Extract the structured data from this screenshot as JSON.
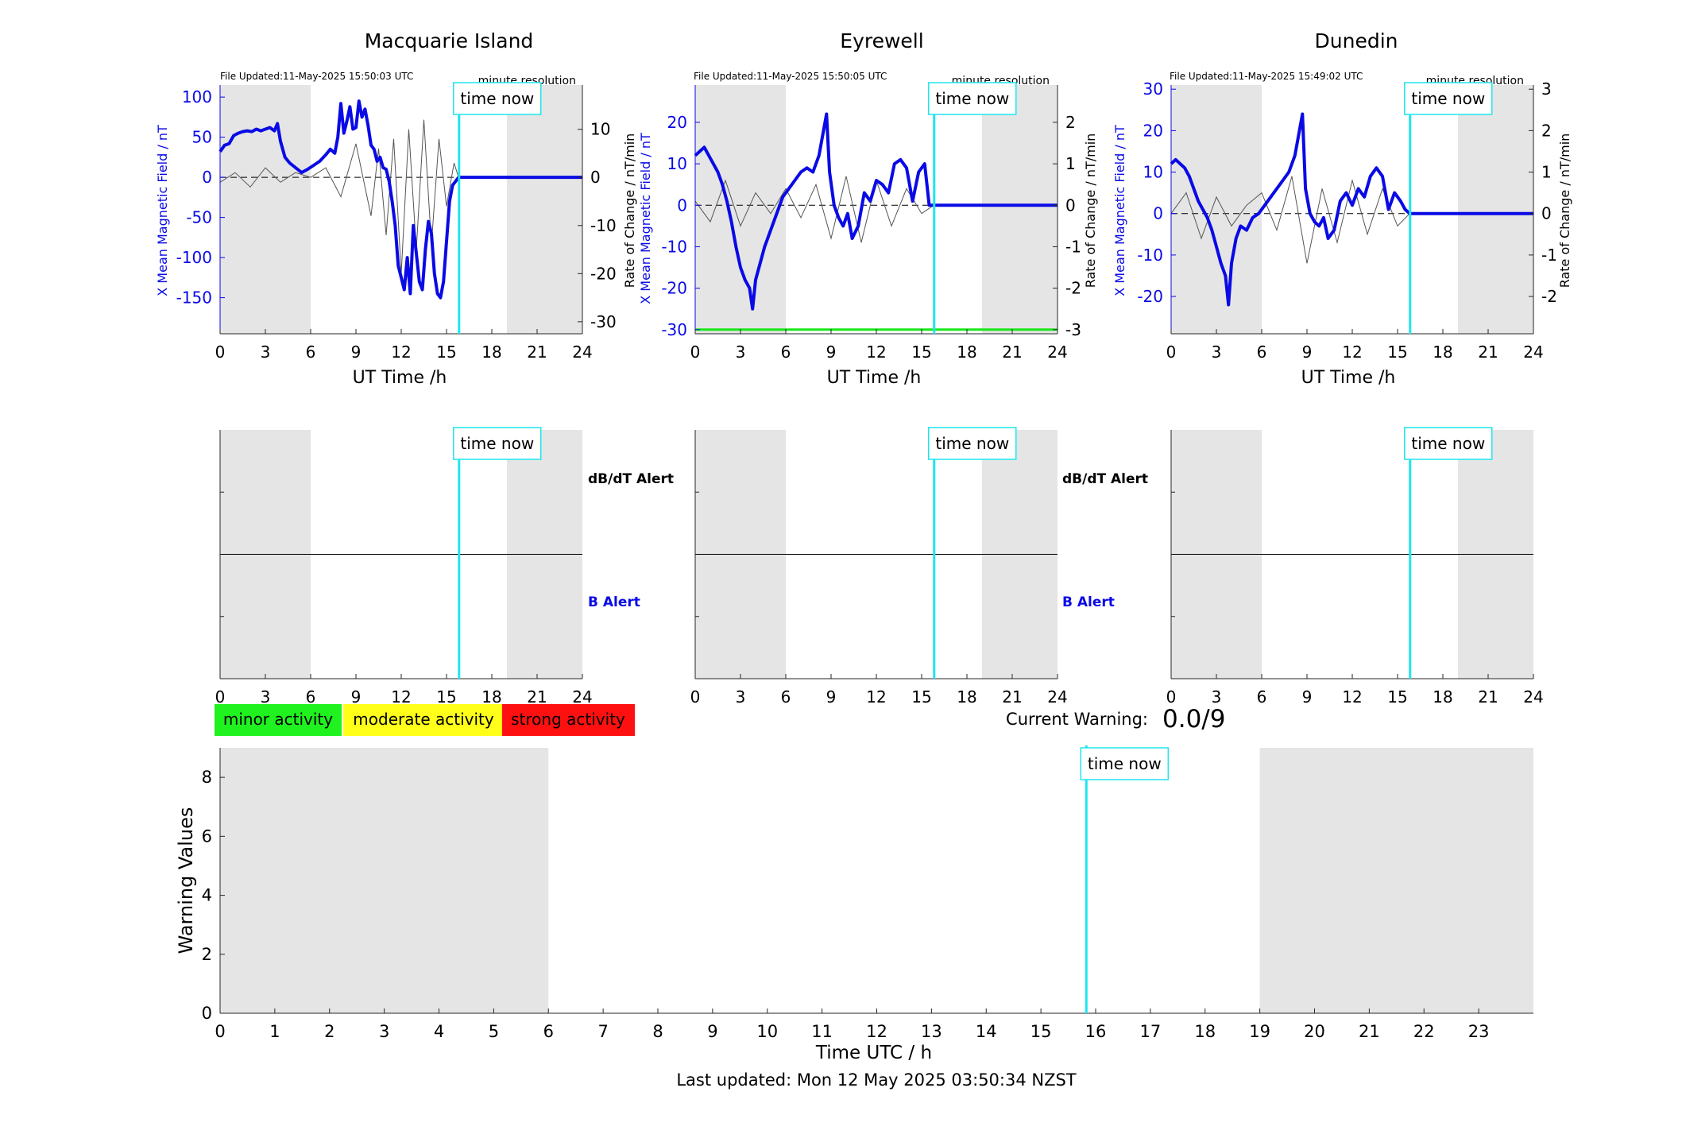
{
  "x_ticks": [
    "0",
    "3",
    "6",
    "9",
    "12",
    "15",
    "18",
    "21",
    "24"
  ],
  "xlabel": "UT Time /h",
  "stations": [
    {
      "name": "Macquarie Island",
      "file_updated": "File Updated:11-May-2025 15:50:03 UTC",
      "resolution": "minute resolution",
      "ylabel_left": "X Mean Magnetic Field / nT",
      "ylabel_right": "Rate of Change / nT/min",
      "left_ticks": [
        "100",
        "50",
        "0",
        "-50",
        "-100",
        "-150"
      ],
      "right_ticks": [
        "10",
        "0",
        "-10",
        "-20",
        "-30"
      ],
      "time_now_label": "time now",
      "dbdt_alert_label": "dB/dT Alert",
      "b_alert_label": "B Alert"
    },
    {
      "name": "Eyrewell",
      "file_updated": "File Updated:11-May-2025 15:50:05 UTC",
      "resolution": "minute resolution",
      "ylabel_left": "X Mean Magnetic Field / nT",
      "ylabel_right": "Rate of Change / nT/min",
      "left_ticks": [
        "20",
        "10",
        "0",
        "-10",
        "-20",
        "-30"
      ],
      "right_ticks": [
        "2",
        "1",
        "0",
        "-1",
        "-2",
        "-3"
      ],
      "time_now_label": "time now",
      "dbdt_alert_label": "dB/dT Alert",
      "b_alert_label": "B Alert"
    },
    {
      "name": "Dunedin",
      "file_updated": "File Updated:11-May-2025 15:49:02 UTC",
      "resolution": "minute resolution",
      "ylabel_left": "X Mean Magnetic Field / nT",
      "ylabel_right": "Rate of Change / nT/min",
      "left_ticks": [
        "30",
        "20",
        "10",
        "0",
        "-10",
        "-20"
      ],
      "right_ticks": [
        "3",
        "2",
        "1",
        "0",
        "-1",
        "-2"
      ],
      "time_now_label": "time now"
    }
  ],
  "legend": {
    "minor": "minor activity",
    "moderate": "moderate activity",
    "strong": "strong activity"
  },
  "current_warning": {
    "label": "Current Warning:",
    "value": "0.0/9"
  },
  "warning_panel": {
    "ylabel": "Warning Values",
    "xlabel": "Time UTC / h",
    "y_ticks": [
      "0",
      "2",
      "4",
      "6",
      "8"
    ],
    "x_ticks": [
      "0",
      "1",
      "2",
      "3",
      "4",
      "5",
      "6",
      "7",
      "8",
      "9",
      "10",
      "11",
      "12",
      "13",
      "14",
      "15",
      "16",
      "17",
      "18",
      "19",
      "20",
      "21",
      "22",
      "23"
    ],
    "time_now_label": "time now"
  },
  "last_updated": "Last updated: Mon 12 May 2025 03:50:34 NZST",
  "colors": {
    "field": "#0a0ae6",
    "rate": "#555555",
    "time_now": "#1ee6ee",
    "shade": "#e5e5e5",
    "minor": "#1ff21f",
    "moderate": "#ffff1a",
    "strong": "#ff1010",
    "ref_green": "#19e619"
  },
  "chart_data": [
    {
      "type": "line",
      "title": "Macquarie Island",
      "xlabel": "UT Time /h",
      "ylabel": "X Mean Magnetic Field / nT",
      "ylabel_right": "Rate of Change / nT/min",
      "xlim": [
        0,
        24
      ],
      "ylim": [
        -195,
        115
      ],
      "ylim_right": [
        -32.5,
        19.2
      ],
      "time_now": 15.83,
      "night_shading": [
        [
          0,
          6
        ],
        [
          19,
          24
        ]
      ],
      "series": [
        {
          "x": [
            0,
            0.3,
            0.6,
            0.9,
            1.2,
            1.5,
            1.8,
            2.1,
            2.4,
            2.7,
            3.0,
            3.3,
            3.6,
            3.8,
            4.0,
            4.3,
            4.6,
            5.0,
            5.4,
            5.8,
            6.2,
            6.6,
            7.0,
            7.3,
            7.6,
            7.8,
            8.0,
            8.2,
            8.4,
            8.6,
            8.8,
            9.0,
            9.2,
            9.4,
            9.6,
            9.8,
            10.0,
            10.2,
            10.4,
            10.6,
            10.8,
            11.0,
            11.2,
            11.4,
            11.6,
            11.8,
            12.0,
            12.2,
            12.4,
            12.6,
            12.8,
            13.0,
            13.2,
            13.4,
            13.6,
            13.8,
            14.0,
            14.2,
            14.4,
            14.6,
            14.8,
            15.0,
            15.2,
            15.4,
            15.6,
            15.8,
            16,
            18,
            21,
            24
          ],
          "values": [
            32,
            40,
            42,
            52,
            55,
            57,
            58,
            57,
            60,
            58,
            60,
            62,
            58,
            67,
            45,
            25,
            18,
            12,
            6,
            10,
            15,
            20,
            28,
            35,
            30,
            50,
            92,
            55,
            70,
            88,
            60,
            62,
            95,
            75,
            85,
            65,
            40,
            35,
            20,
            25,
            12,
            10,
            -5,
            -30,
            -60,
            -110,
            -125,
            -140,
            -100,
            -145,
            -60,
            -95,
            -130,
            -140,
            -90,
            -55,
            -70,
            -120,
            -145,
            -150,
            -130,
            -80,
            -30,
            -10,
            -5,
            0,
            0,
            0,
            0,
            0
          ]
        },
        {
          "x": [
            0,
            1,
            2,
            3,
            4,
            5,
            6,
            7,
            8,
            9,
            10,
            10.5,
            11,
            11.5,
            12,
            12.5,
            13,
            13.5,
            14,
            14.5,
            15,
            15.5,
            15.8
          ],
          "values": [
            -1,
            1,
            -2,
            2,
            -1,
            1,
            0,
            2,
            -4,
            7,
            -8,
            6,
            -12,
            8,
            -20,
            10,
            -15,
            12,
            -14,
            8,
            -6,
            3,
            0
          ],
          "axis": "right"
        }
      ]
    },
    {
      "type": "line",
      "title": "Eyrewell",
      "xlabel": "UT Time /h",
      "ylabel": "X Mean Magnetic Field / nT",
      "ylabel_right": "Rate of Change / nT/min",
      "xlim": [
        0,
        24
      ],
      "ylim": [
        -31,
        29
      ],
      "ylim_right": [
        -3.1,
        2.9
      ],
      "reference_line": -30,
      "time_now": 15.83,
      "night_shading": [
        [
          0,
          6
        ],
        [
          19,
          24
        ]
      ],
      "series": [
        {
          "x": [
            0,
            0.3,
            0.6,
            0.9,
            1.2,
            1.5,
            1.8,
            2.1,
            2.4,
            2.7,
            3.0,
            3.3,
            3.6,
            3.8,
            4.0,
            4.3,
            4.6,
            5.0,
            5.4,
            5.8,
            6.2,
            6.6,
            7.0,
            7.4,
            7.8,
            8.2,
            8.5,
            8.7,
            8.9,
            9.2,
            9.5,
            9.8,
            10.1,
            10.4,
            10.8,
            11.2,
            11.6,
            12.0,
            12.4,
            12.8,
            13.2,
            13.6,
            14.0,
            14.4,
            14.8,
            15.2,
            15.5,
            15.8,
            16,
            18,
            21,
            24
          ],
          "values": [
            12,
            13,
            14,
            12,
            10,
            8,
            5,
            1,
            -4,
            -10,
            -15,
            -18,
            -20,
            -25,
            -18,
            -14,
            -10,
            -6,
            -2,
            2,
            4,
            6,
            8,
            9,
            8,
            12,
            18,
            22,
            8,
            0,
            -3,
            -5,
            -2,
            -8,
            -5,
            3,
            1,
            6,
            5,
            3,
            10,
            11,
            9,
            1,
            8,
            10,
            0,
            0,
            0,
            0,
            0,
            0
          ]
        },
        {
          "x": [
            0,
            1,
            2,
            3,
            4,
            5,
            6,
            7,
            8,
            9,
            10,
            11,
            12,
            13,
            14,
            15,
            15.8
          ],
          "values": [
            0.1,
            -0.4,
            0.6,
            -0.5,
            0.3,
            -0.2,
            0.4,
            -0.3,
            0.5,
            -0.8,
            0.7,
            -0.9,
            0.6,
            -0.5,
            0.4,
            -0.2,
            0
          ],
          "axis": "right"
        }
      ]
    },
    {
      "type": "line",
      "title": "Dunedin",
      "xlabel": "UT Time /h",
      "ylabel": "X Mean Magnetic Field / nT",
      "ylabel_right": "Rate of Change / nT/min",
      "xlim": [
        0,
        24
      ],
      "ylim": [
        -29,
        31
      ],
      "ylim_right": [
        -2.9,
        3.1
      ],
      "time_now": 15.83,
      "night_shading": [
        [
          0,
          6
        ],
        [
          19,
          24
        ]
      ],
      "series": [
        {
          "x": [
            0,
            0.3,
            0.6,
            0.9,
            1.2,
            1.5,
            1.8,
            2.1,
            2.4,
            2.7,
            3.0,
            3.3,
            3.6,
            3.8,
            4.0,
            4.3,
            4.6,
            5.0,
            5.4,
            5.8,
            6.2,
            6.6,
            7.0,
            7.4,
            7.8,
            8.2,
            8.5,
            8.7,
            8.9,
            9.2,
            9.5,
            9.8,
            10.1,
            10.4,
            10.8,
            11.2,
            11.6,
            12.0,
            12.4,
            12.8,
            13.2,
            13.6,
            14.0,
            14.4,
            14.8,
            15.2,
            15.5,
            15.8,
            16,
            18,
            21,
            24
          ],
          "values": [
            12,
            13,
            12,
            11,
            9,
            6,
            3,
            1,
            -1,
            -4,
            -8,
            -12,
            -15,
            -22,
            -12,
            -6,
            -3,
            -4,
            -1,
            0,
            2,
            4,
            6,
            8,
            10,
            14,
            20,
            24,
            6,
            0,
            -2,
            -3,
            -1,
            -6,
            -4,
            3,
            5,
            2,
            6,
            4,
            9,
            11,
            9,
            1,
            5,
            3,
            1,
            0,
            0,
            0,
            0,
            0
          ]
        },
        {
          "x": [
            0,
            1,
            2,
            3,
            4,
            5,
            6,
            7,
            8,
            9,
            10,
            11,
            12,
            13,
            14,
            15,
            15.8
          ],
          "values": [
            0,
            0.5,
            -0.6,
            0.4,
            -0.3,
            0.2,
            0.5,
            -0.4,
            0.9,
            -1.2,
            0.6,
            -0.7,
            0.8,
            -0.5,
            0.6,
            -0.3,
            0
          ],
          "axis": "right"
        }
      ]
    },
    {
      "type": "line",
      "title": "",
      "xlabel": "",
      "ylabel": "",
      "xlim": [
        0,
        24
      ],
      "ylim": [
        0,
        1
      ],
      "time_now": 15.83,
      "night_shading": [
        [
          0,
          6
        ],
        [
          19,
          24
        ]
      ],
      "series": [
        {
          "x": [
            0,
            24
          ],
          "values": [
            0.5,
            0.5
          ]
        }
      ]
    },
    {
      "type": "line",
      "title": "",
      "xlabel": "",
      "ylabel": "",
      "xlim": [
        0,
        24
      ],
      "ylim": [
        0,
        1
      ],
      "time_now": 15.83,
      "night_shading": [
        [
          0,
          6
        ],
        [
          19,
          24
        ]
      ],
      "series": [
        {
          "x": [
            0,
            24
          ],
          "values": [
            0.5,
            0.5
          ]
        }
      ]
    },
    {
      "type": "line",
      "title": "",
      "xlabel": "",
      "ylabel": "",
      "xlim": [
        0,
        24
      ],
      "ylim": [
        0,
        1
      ],
      "time_now": 15.83,
      "night_shading": [
        [
          0,
          6
        ],
        [
          19,
          24
        ]
      ],
      "series": [
        {
          "x": [
            0,
            24
          ],
          "values": [
            0.5,
            0.5
          ]
        }
      ]
    },
    {
      "type": "bar",
      "title": "",
      "xlabel": "Time UTC / h",
      "ylabel": "Warning Values",
      "xlim": [
        0,
        24
      ],
      "ylim": [
        0,
        9
      ],
      "time_now": 15.83,
      "night_shading": [
        [
          0,
          6
        ],
        [
          19,
          24
        ]
      ],
      "series": [
        {
          "x": [],
          "values": []
        }
      ]
    }
  ]
}
